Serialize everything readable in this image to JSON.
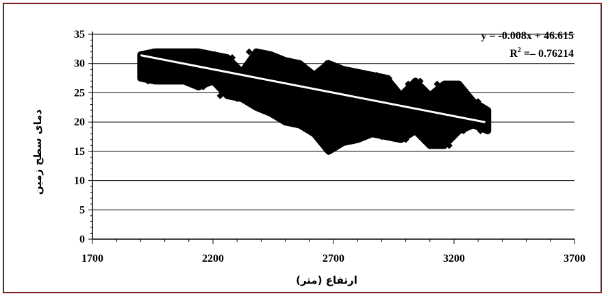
{
  "chart_data": {
    "type": "scatter",
    "title": "",
    "xlabel": "ارتفاع (متر)",
    "ylabel": "دمای سطح زمین",
    "xlim": [
      1700,
      3700
    ],
    "ylim": [
      0,
      35
    ],
    "xticks": [
      "1700",
      "2200",
      "2700",
      "3200",
      "3700"
    ],
    "yticks": [
      "0",
      "5",
      "10",
      "15",
      "20",
      "25",
      "30",
      "35"
    ],
    "grid": "horizontal",
    "marker": "diamond",
    "marker_color": "#000000",
    "trendline_color": "#ffffff",
    "equation": "y = -0.008x + 46.615",
    "r2_label": "R",
    "r2_exp": "2",
    "r2_value": " =– 0.76214",
    "trendline": {
      "slope": -0.008,
      "intercept": 46.615,
      "x_range": [
        1900,
        3330
      ]
    },
    "series": [
      {
        "points": [
          [
            1900,
            27.5
          ],
          [
            1900,
            30.5
          ],
          [
            1910,
            29
          ],
          [
            1920,
            31.5
          ],
          [
            1930,
            27
          ],
          [
            1950,
            32
          ],
          [
            1960,
            28.5
          ],
          [
            1975,
            27
          ],
          [
            1990,
            32
          ],
          [
            2000,
            30
          ],
          [
            2010,
            27
          ],
          [
            2030,
            29.5
          ],
          [
            2050,
            27.5
          ],
          [
            2070,
            31
          ],
          [
            2090,
            27
          ],
          [
            2100,
            32
          ],
          [
            2120,
            28.5
          ],
          [
            2140,
            32
          ],
          [
            2160,
            26
          ],
          [
            2180,
            30
          ],
          [
            2200,
            27
          ],
          [
            2210,
            31.5
          ],
          [
            2230,
            24.5
          ],
          [
            2250,
            29
          ],
          [
            2270,
            26
          ],
          [
            2280,
            31
          ],
          [
            2300,
            24
          ],
          [
            2320,
            28.5
          ],
          [
            2340,
            25.5
          ],
          [
            2350,
            32
          ],
          [
            2360,
            23.5
          ],
          [
            2380,
            30
          ],
          [
            2400,
            22.5
          ],
          [
            2410,
            27
          ],
          [
            2420,
            31.5
          ],
          [
            2440,
            21.5
          ],
          [
            2460,
            26
          ],
          [
            2470,
            30.5
          ],
          [
            2480,
            21
          ],
          [
            2500,
            28
          ],
          [
            2510,
            20
          ],
          [
            2530,
            24.5
          ],
          [
            2550,
            19.5
          ],
          [
            2560,
            30
          ],
          [
            2580,
            23
          ],
          [
            2600,
            19
          ],
          [
            2610,
            28
          ],
          [
            2630,
            18
          ],
          [
            2650,
            25
          ],
          [
            2660,
            16.5
          ],
          [
            2670,
            30
          ],
          [
            2680,
            15
          ],
          [
            2690,
            21.5
          ],
          [
            2700,
            17.5
          ],
          [
            2710,
            29
          ],
          [
            2720,
            24
          ],
          [
            2730,
            16.5
          ],
          [
            2740,
            19.5
          ],
          [
            2760,
            27.5
          ],
          [
            2780,
            17
          ],
          [
            2790,
            22.5
          ],
          [
            2800,
            28.5
          ],
          [
            2820,
            19
          ],
          [
            2840,
            26
          ],
          [
            2850,
            18
          ],
          [
            2870,
            24
          ],
          [
            2880,
            28
          ],
          [
            2900,
            17.5
          ],
          [
            2910,
            21
          ],
          [
            2930,
            27.5
          ],
          [
            2950,
            18.5
          ],
          [
            2960,
            24.5
          ],
          [
            2980,
            20.5
          ],
          [
            3000,
            17
          ],
          [
            3010,
            26.5
          ],
          [
            3030,
            22
          ],
          [
            3050,
            18.5
          ],
          [
            3060,
            27
          ],
          [
            3080,
            24.5
          ],
          [
            3100,
            16
          ],
          [
            3110,
            21
          ],
          [
            3130,
            26.5
          ],
          [
            3150,
            17.5
          ],
          [
            3160,
            23
          ],
          [
            3180,
            16
          ],
          [
            3190,
            26.5
          ],
          [
            3200,
            20
          ],
          [
            3220,
            24.5
          ],
          [
            3240,
            18.5
          ],
          [
            3260,
            22.5
          ],
          [
            3280,
            19.5
          ],
          [
            3300,
            23.5
          ],
          [
            3310,
            18.5
          ],
          [
            3330,
            21
          ],
          [
            3340,
            22
          ],
          [
            3320,
            20
          ]
        ]
      }
    ]
  }
}
